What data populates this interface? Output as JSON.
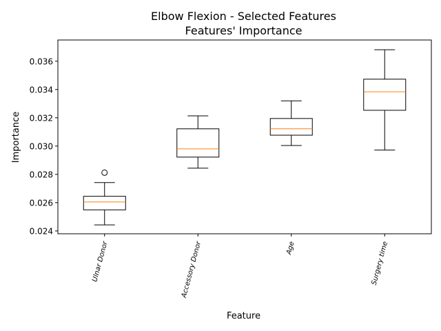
{
  "chart_data": {
    "type": "box",
    "title_line1": "Elbow Flexion - Selected Features",
    "title_line2": "Features' Importance",
    "xlabel": "Feature",
    "ylabel": "Importance",
    "ylim": [
      0.0238,
      0.0375
    ],
    "yticks": [
      0.024,
      0.026,
      0.028,
      0.03,
      0.032,
      0.034,
      0.036
    ],
    "ytick_labels": [
      "0.024",
      "0.026",
      "0.028",
      "0.030",
      "0.032",
      "0.034",
      "0.036"
    ],
    "categories": [
      "Ulnar Donor",
      "Accessory Donor",
      "Age",
      "Surgery time"
    ],
    "boxes": [
      {
        "whisker_low": 0.02443,
        "q1": 0.02549,
        "median": 0.02605,
        "q3": 0.02645,
        "whisker_high": 0.02742,
        "outliers": [
          0.02812
        ]
      },
      {
        "whisker_low": 0.02844,
        "q1": 0.02922,
        "median": 0.0298,
        "q3": 0.03122,
        "whisker_high": 0.03214,
        "outliers": []
      },
      {
        "whisker_low": 0.03004,
        "q1": 0.03077,
        "median": 0.03122,
        "q3": 0.03195,
        "whisker_high": 0.0332,
        "outliers": []
      },
      {
        "whisker_low": 0.02972,
        "q1": 0.03253,
        "median": 0.03384,
        "q3": 0.03473,
        "whisker_high": 0.03681,
        "outliers": []
      }
    ],
    "median_color": "#ff7f0e",
    "box_color": "#000000",
    "grid": false
  }
}
